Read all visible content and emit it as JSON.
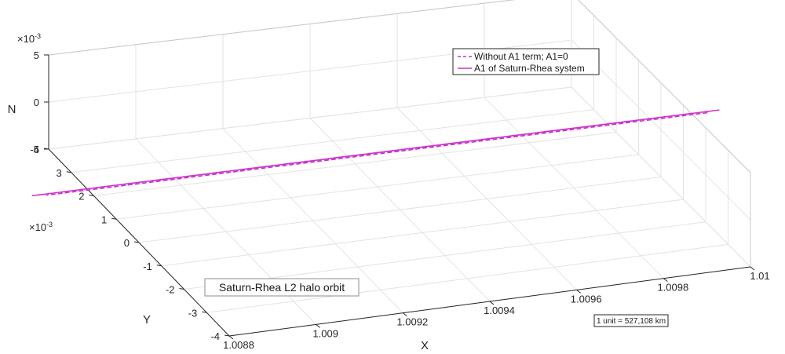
{
  "chart_data": {
    "type": "line",
    "projection": "3d",
    "x": {
      "label": "X",
      "lim": [
        1.0088,
        1.01
      ],
      "ticks": [
        1.0088,
        1.009,
        1.0092,
        1.0094,
        1.0096,
        1.0098,
        1.01
      ],
      "tick_labels": [
        "1.0088",
        "1.009",
        "1.0092",
        "1.0094",
        "1.0096",
        "1.0098",
        "1.01"
      ]
    },
    "y": {
      "label": "Y",
      "lim": [
        -4,
        4
      ],
      "ticks": [
        -4,
        -3,
        -2,
        -1,
        0,
        1,
        2,
        3,
        4
      ],
      "tick_labels": [
        "-4",
        "-3",
        "-2",
        "-1",
        "0",
        "1",
        "2",
        "3",
        "4"
      ],
      "exponent_label": "×10",
      "exponent_value": "-3"
    },
    "z": {
      "label": "N",
      "lim": [
        -5,
        5
      ],
      "ticks": [
        -5,
        0,
        5
      ],
      "tick_labels": [
        "-5",
        "0",
        "5"
      ],
      "exponent_label": "×10",
      "exponent_value": "-3"
    },
    "grid": true,
    "legend_position": "top-right",
    "series": [
      {
        "name": "Without A1 term; A1=0",
        "style": "dashed",
        "color": "#cc33cc",
        "center": [
          1.00937,
          0.45,
          0.0
        ],
        "semi_axes": [
          0.00076,
          0.00305
        ],
        "tilt_z": 0.0015
      },
      {
        "name": "A1 of Saturn-Rhea system",
        "style": "solid",
        "color": "#cc33cc",
        "center": [
          1.00937,
          0.5,
          0.0
        ],
        "semi_axes": [
          0.00079,
          0.0031
        ],
        "tilt_z": 0.0015
      }
    ],
    "annotations": {
      "title_box": "Saturn-Rhea L2 halo orbit",
      "unit_box": "1 unit = 527,108 km"
    }
  }
}
